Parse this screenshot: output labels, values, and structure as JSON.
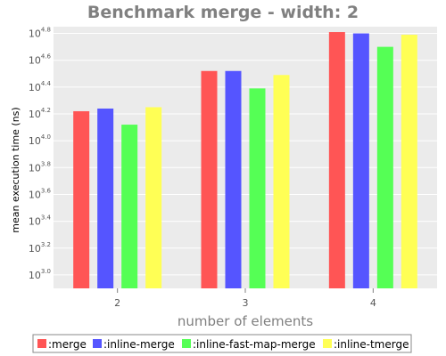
{
  "chart_data": {
    "type": "bar",
    "title": "Benchmark merge - width: 2",
    "xlabel": "number of elements",
    "ylabel": "mean execution time (ns)",
    "yscale": "log10",
    "ylim_exponent": [
      2.9,
      4.85
    ],
    "y_tick_base": "10",
    "y_ticks": [
      {
        "exponent": 3.0,
        "label": "3.0"
      },
      {
        "exponent": 3.2,
        "label": "3.2"
      },
      {
        "exponent": 3.4,
        "label": "3.4"
      },
      {
        "exponent": 3.6,
        "label": "3.6"
      },
      {
        "exponent": 3.8,
        "label": "3.8"
      },
      {
        "exponent": 4.0,
        "label": "4.0"
      },
      {
        "exponent": 4.2,
        "label": "4.2"
      },
      {
        "exponent": 4.4,
        "label": "4.4"
      },
      {
        "exponent": 4.6,
        "label": "4.6"
      },
      {
        "exponent": 4.8,
        "label": "4.8"
      }
    ],
    "categories": [
      "2",
      "3",
      "4"
    ],
    "series": [
      {
        "name": ":merge",
        "color": "#ff5555",
        "log_values": [
          4.22,
          4.52,
          4.81
        ]
      },
      {
        "name": ":inline-merge",
        "color": "#5555ff",
        "log_values": [
          4.24,
          4.52,
          4.8
        ]
      },
      {
        "name": ":inline-fast-map-merge",
        "color": "#55ff55",
        "log_values": [
          4.12,
          4.39,
          4.7
        ]
      },
      {
        "name": ":inline-tmerge",
        "color": "#ffff55",
        "log_values": [
          4.25,
          4.49,
          4.79
        ]
      }
    ],
    "plot_background": "#ebebeb",
    "grid": true,
    "legend_position": "bottom"
  }
}
